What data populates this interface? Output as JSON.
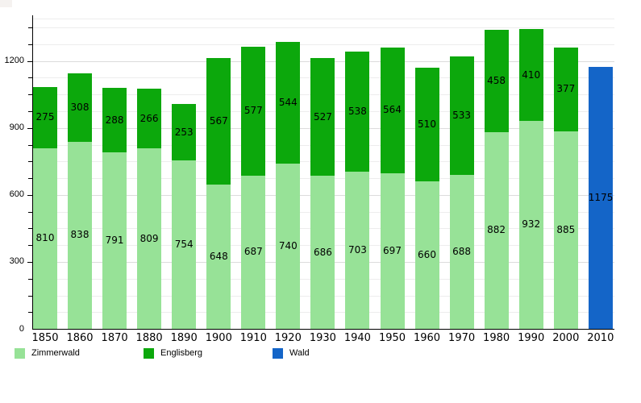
{
  "chart_data": {
    "type": "bar",
    "stacked": true,
    "title": "",
    "xlabel": "",
    "ylabel": "",
    "categories": [
      "1850",
      "1860",
      "1870",
      "1880",
      "1890",
      "1900",
      "1910",
      "1920",
      "1930",
      "1940",
      "1950",
      "1960",
      "1970",
      "1980",
      "1990",
      "2000",
      "2010"
    ],
    "series": [
      {
        "name": "Zimmerwald",
        "color": "#97e297",
        "values": [
          810,
          838,
          791,
          809,
          754,
          648,
          687,
          740,
          686,
          703,
          697,
          660,
          688,
          882,
          932,
          885,
          null
        ]
      },
      {
        "name": "Englisberg",
        "color": "#0ca80c",
        "values": [
          275,
          308,
          288,
          266,
          253,
          567,
          577,
          544,
          527,
          538,
          564,
          510,
          533,
          458,
          410,
          377,
          null
        ]
      },
      {
        "name": "Wald",
        "color": "#1465c8",
        "values": [
          null,
          null,
          null,
          null,
          null,
          null,
          null,
          null,
          null,
          null,
          null,
          null,
          null,
          null,
          null,
          null,
          1175
        ]
      }
    ],
    "ylim": [
      0,
      1390
    ],
    "yticks": [
      0,
      300,
      600,
      900,
      1200
    ],
    "minor_grid_step": 75,
    "grid": true,
    "value_labels": true,
    "legend_position": "bottom",
    "axis_color": "#000000",
    "background_color": "#ffffff"
  }
}
